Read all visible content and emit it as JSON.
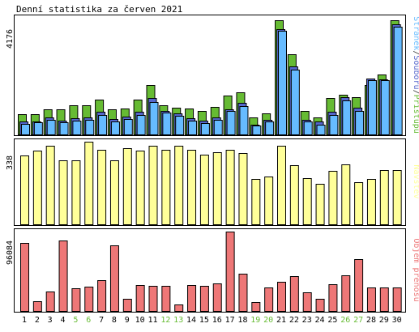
{
  "page": {
    "title": "Denní statistika za červen 2021"
  },
  "chart_data": [
    {
      "type": "bar",
      "title": "Denní statistika za červen 2021",
      "panel": "top",
      "ymax_label": "4176",
      "ylim": [
        0,
        4176
      ],
      "categories": [
        "1",
        "2",
        "3",
        "4",
        "5",
        "6",
        "7",
        "8",
        "9",
        "10",
        "11",
        "12",
        "13",
        "14",
        "15",
        "16",
        "17",
        "18",
        "19",
        "20",
        "21",
        "22",
        "23",
        "24",
        "25",
        "26",
        "27",
        "28",
        "29",
        "30"
      ],
      "weekend_days": [
        "5",
        "6",
        "12",
        "13",
        "19",
        "20",
        "26",
        "27"
      ],
      "legend_label_parts": [
        {
          "text": "Stránek",
          "color": "#66bbff"
        },
        {
          "text": "/",
          "color": "#333333"
        },
        {
          "text": "Souborů",
          "color": "#5566cc"
        },
        {
          "text": "/",
          "color": "#333333"
        },
        {
          "text": "Přístupů",
          "color": "#66bb33"
        }
      ],
      "series": [
        {
          "name": "Přístupů",
          "color": "#66bb33",
          "values": [
            720,
            720,
            900,
            900,
            1030,
            1030,
            1250,
            900,
            920,
            1250,
            1760,
            1030,
            950,
            920,
            830,
            1000,
            1390,
            1520,
            600,
            750,
            4100,
            2880,
            830,
            600,
            1300,
            1420,
            1340,
            1760,
            2160,
            4100
          ]
        },
        {
          "name": "Souborů",
          "color": "#5566cc",
          "values": [
            460,
            460,
            600,
            500,
            570,
            600,
            800,
            540,
            640,
            800,
            1300,
            850,
            750,
            580,
            480,
            600,
            910,
            1120,
            360,
            520,
            3760,
            2430,
            530,
            450,
            800,
            1340,
            950,
            1990,
            1970,
            3950
          ]
        },
        {
          "name": "Stránek",
          "color": "#66bbff",
          "values": [
            380,
            430,
            520,
            430,
            500,
            530,
            700,
            470,
            560,
            710,
            1170,
            780,
            680,
            500,
            410,
            520,
            830,
            1010,
            310,
            470,
            3720,
            2310,
            460,
            360,
            700,
            1230,
            850,
            1930,
            1930,
            3870
          ]
        }
      ]
    },
    {
      "type": "bar",
      "panel": "middle",
      "ymax_label": "338",
      "ylim": [
        0,
        338
      ],
      "categories": [
        "1",
        "2",
        "3",
        "4",
        "5",
        "6",
        "7",
        "8",
        "9",
        "10",
        "11",
        "12",
        "13",
        "14",
        "15",
        "16",
        "17",
        "18",
        "19",
        "20",
        "21",
        "22",
        "23",
        "24",
        "25",
        "26",
        "27",
        "28",
        "29",
        "30"
      ],
      "legend_label": "Návštěv",
      "series": [
        {
          "name": "Návštěv",
          "color": "#ffff99",
          "values": [
            283,
            300,
            320,
            262,
            262,
            338,
            305,
            262,
            312,
            302,
            320,
            305,
            323,
            305,
            285,
            295,
            305,
            293,
            185,
            197,
            320,
            243,
            190,
            165,
            219,
            245,
            172,
            185,
            223,
            221
          ]
        }
      ]
    },
    {
      "type": "bar",
      "panel": "bottom",
      "ymax_label": "96084",
      "ylim": [
        0,
        96084
      ],
      "categories": [
        "1",
        "2",
        "3",
        "4",
        "5",
        "6",
        "7",
        "8",
        "9",
        "10",
        "11",
        "12",
        "13",
        "14",
        "15",
        "16",
        "17",
        "18",
        "19",
        "20",
        "21",
        "22",
        "23",
        "24",
        "25",
        "26",
        "27",
        "28",
        "29",
        "30"
      ],
      "legend_label": "Objem přenosu",
      "series": [
        {
          "name": "Objem přenosu",
          "color": "#ee7777",
          "values": [
            82000,
            12000,
            24000,
            85000,
            27000,
            29000,
            37000,
            79000,
            15000,
            31000,
            30000,
            30000,
            8000,
            31000,
            30000,
            33000,
            96084,
            45000,
            11000,
            28000,
            35000,
            42000,
            23000,
            15000,
            32000,
            43000,
            63000,
            28000,
            28000,
            28000
          ]
        }
      ]
    }
  ]
}
